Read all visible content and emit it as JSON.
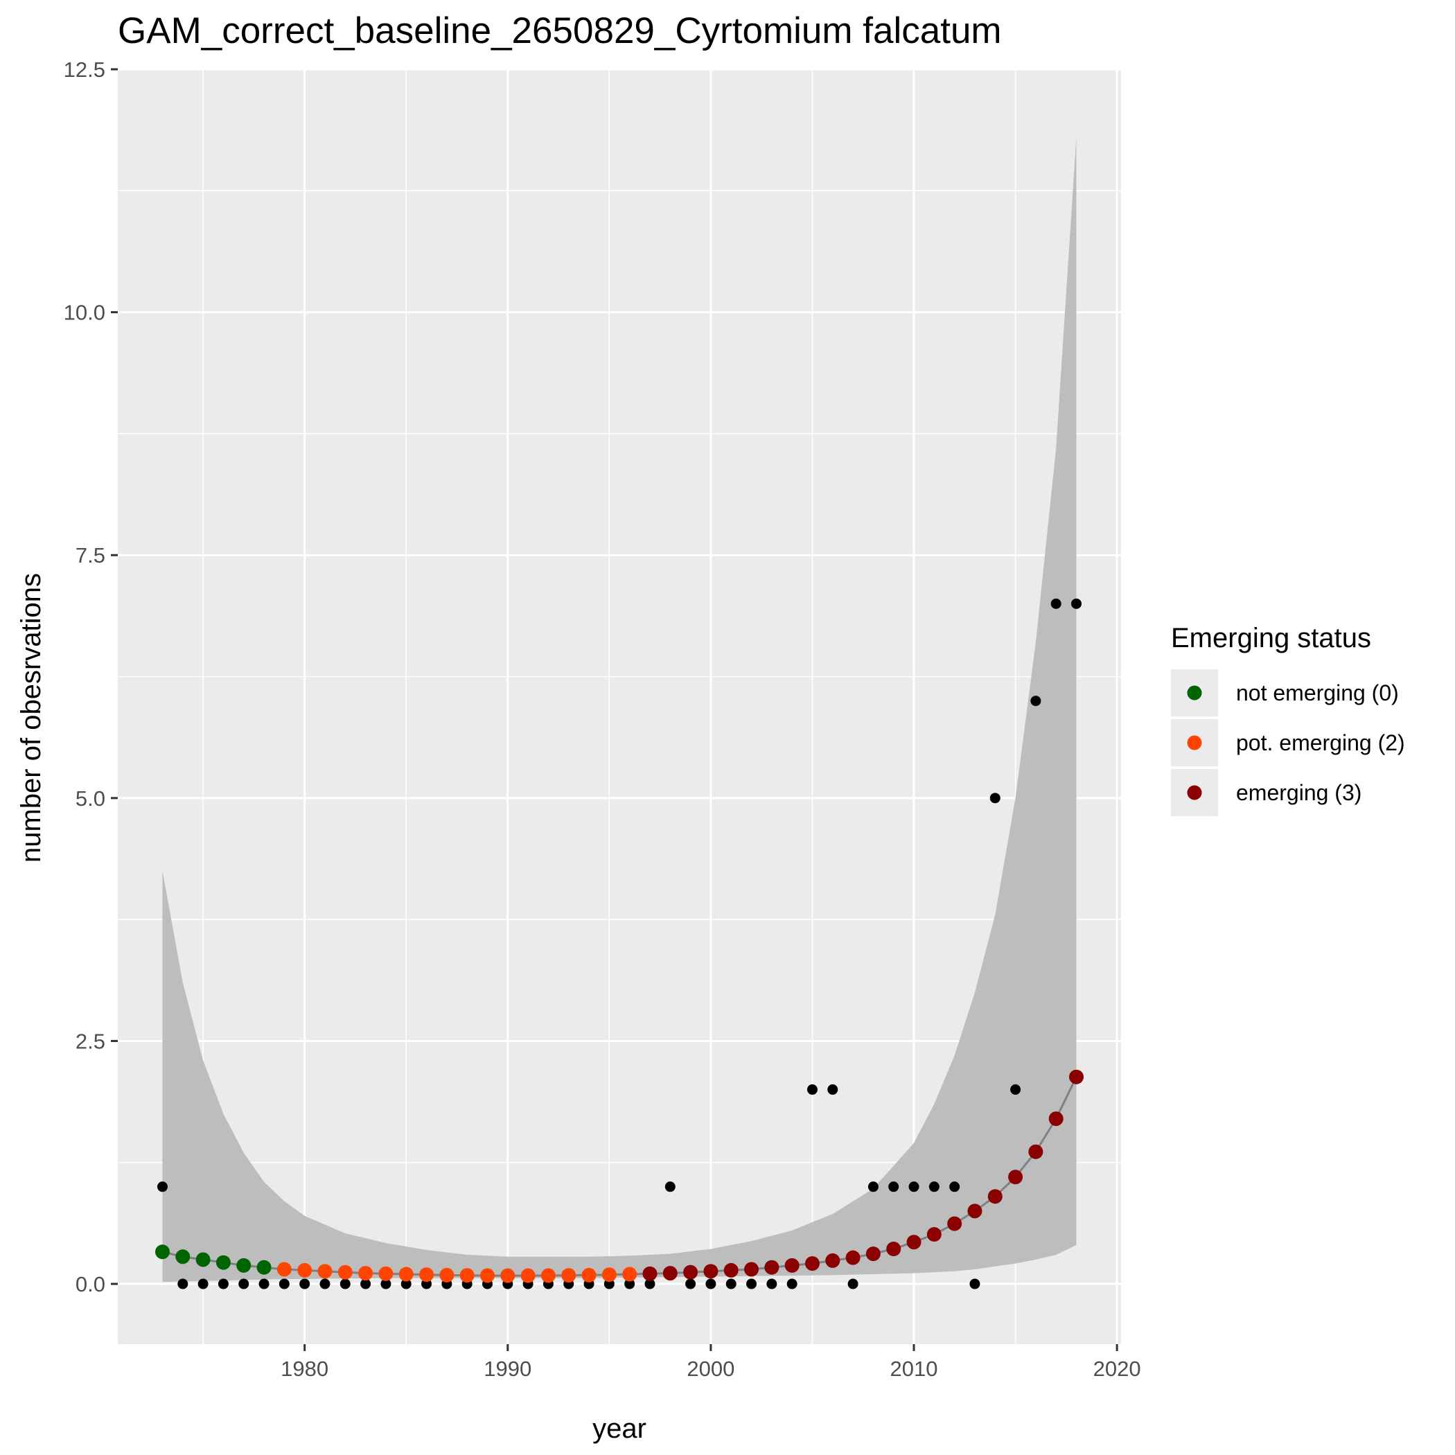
{
  "chart_data": {
    "type": "scatter",
    "title": "GAM_correct_baseline_2650829_Cyrtomium falcatum",
    "xlabel": "year",
    "ylabel": "number of obesrvations",
    "xlim": [
      1970.8,
      2020.2
    ],
    "ylim": [
      -0.62,
      12.5
    ],
    "x_ticks": [
      1980,
      1990,
      2000,
      2010,
      2020
    ],
    "y_ticks": [
      0.0,
      2.5,
      5.0,
      7.5,
      10.0,
      12.5
    ],
    "y_tick_labels": [
      "0.0",
      "2.5",
      "5.0",
      "7.5",
      "10.0",
      "12.5"
    ],
    "grid": true,
    "legend": {
      "title": "Emerging status",
      "position": "right",
      "entries": [
        {
          "label": "not emerging (0)",
          "color": "#006400"
        },
        {
          "label": "pot. emerging (2)",
          "color": "#ff4500"
        },
        {
          "label": "emerging (3)",
          "color": "#8b0000"
        }
      ]
    },
    "colors": {
      "panel": "#ebebeb",
      "grid": "#ffffff",
      "ribbon": "#bdbdbd",
      "fit_line": "#808080",
      "observed_point": "#000000"
    },
    "observed": {
      "x": [
        1973,
        1974,
        1975,
        1976,
        1977,
        1978,
        1979,
        1980,
        1981,
        1982,
        1983,
        1984,
        1985,
        1986,
        1987,
        1988,
        1989,
        1990,
        1991,
        1992,
        1993,
        1994,
        1995,
        1996,
        1997,
        1998,
        1999,
        2000,
        2001,
        2002,
        2003,
        2004,
        2005,
        2006,
        2007,
        2008,
        2009,
        2010,
        2011,
        2012,
        2013,
        2014,
        2015,
        2016,
        2017,
        2018
      ],
      "y": [
        1,
        0,
        0,
        0,
        0,
        0,
        0,
        0,
        0,
        0,
        0,
        0,
        0,
        0,
        0,
        0,
        0,
        0,
        0,
        0,
        0,
        0,
        0,
        0,
        0,
        1,
        0,
        0,
        0,
        0,
        0,
        0,
        2,
        2,
        0,
        1,
        1,
        1,
        1,
        1,
        0,
        5,
        2,
        6,
        7,
        7
      ]
    },
    "fit": {
      "x": [
        1973,
        1974,
        1975,
        1976,
        1977,
        1978,
        1979,
        1980,
        1981,
        1982,
        1983,
        1984,
        1985,
        1986,
        1987,
        1988,
        1989,
        1990,
        1991,
        1992,
        1993,
        1994,
        1995,
        1996,
        1997,
        1998,
        1999,
        2000,
        2001,
        2002,
        2003,
        2004,
        2005,
        2006,
        2007,
        2008,
        2009,
        2010,
        2011,
        2012,
        2013,
        2014,
        2015,
        2016,
        2017,
        2018
      ],
      "y": [
        0.33,
        0.28,
        0.25,
        0.22,
        0.19,
        0.17,
        0.15,
        0.14,
        0.13,
        0.12,
        0.11,
        0.105,
        0.1,
        0.095,
        0.09,
        0.088,
        0.086,
        0.085,
        0.085,
        0.086,
        0.088,
        0.09,
        0.095,
        0.1,
        0.105,
        0.11,
        0.12,
        0.13,
        0.14,
        0.15,
        0.17,
        0.19,
        0.21,
        0.24,
        0.27,
        0.31,
        0.36,
        0.43,
        0.51,
        0.62,
        0.75,
        0.9,
        1.1,
        1.36,
        1.7,
        2.13
      ],
      "status": [
        0,
        0,
        0,
        0,
        0,
        0,
        2,
        2,
        2,
        2,
        2,
        2,
        2,
        2,
        2,
        2,
        2,
        2,
        2,
        2,
        2,
        2,
        2,
        2,
        3,
        3,
        3,
        3,
        3,
        3,
        3,
        3,
        3,
        3,
        3,
        3,
        3,
        3,
        3,
        3,
        3,
        3,
        3,
        3,
        3,
        3
      ]
    },
    "ribbon": {
      "x": [
        1973,
        1974,
        1975,
        1976,
        1977,
        1978,
        1979,
        1980,
        1982,
        1984,
        1986,
        1988,
        1990,
        1992,
        1994,
        1996,
        1998,
        2000,
        2002,
        2004,
        2006,
        2008,
        2010,
        2011,
        2012,
        2013,
        2014,
        2015,
        2016,
        2017,
        2018
      ],
      "lower": [
        0.02,
        0.025,
        0.03,
        0.035,
        0.04,
        0.045,
        0.05,
        0.05,
        0.055,
        0.06,
        0.06,
        0.06,
        0.06,
        0.06,
        0.06,
        0.065,
        0.07,
        0.075,
        0.08,
        0.085,
        0.09,
        0.1,
        0.11,
        0.12,
        0.13,
        0.15,
        0.18,
        0.21,
        0.25,
        0.3,
        0.4
      ],
      "upper": [
        4.25,
        3.1,
        2.3,
        1.75,
        1.35,
        1.05,
        0.85,
        0.7,
        0.52,
        0.42,
        0.35,
        0.3,
        0.28,
        0.28,
        0.28,
        0.29,
        0.31,
        0.36,
        0.44,
        0.55,
        0.72,
        0.98,
        1.45,
        1.85,
        2.35,
        3.0,
        3.8,
        5.0,
        6.6,
        8.6,
        11.8
      ]
    }
  }
}
